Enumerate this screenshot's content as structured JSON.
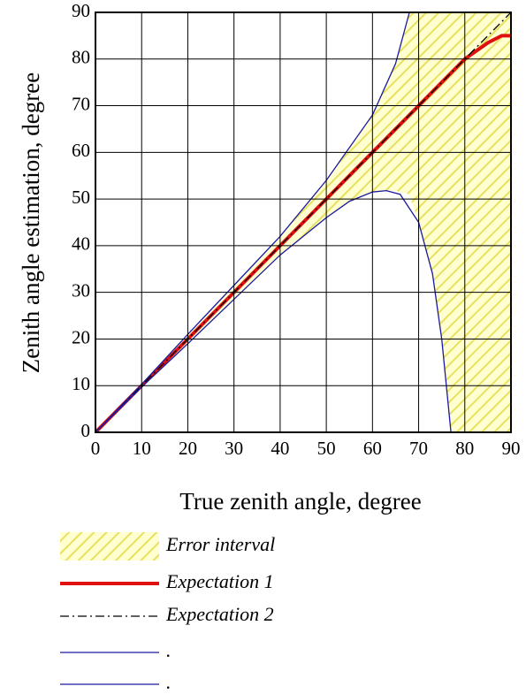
{
  "chart_data": {
    "type": "line",
    "x_label": "True zenith angle, degree",
    "y_label": "Zenith angle estimation, degree",
    "xlim": [
      0,
      90
    ],
    "ylim": [
      0,
      90
    ],
    "xticks": [
      0,
      10,
      20,
      30,
      40,
      50,
      60,
      70,
      80,
      90
    ],
    "yticks": [
      0,
      10,
      20,
      30,
      40,
      50,
      60,
      70,
      80,
      90
    ],
    "grid": true,
    "series": [
      {
        "name": "Error interval",
        "color": "#e8e060",
        "style": "hatch",
        "x": [
          0,
          10,
          20,
          30,
          40,
          50,
          55,
          60,
          65,
          68,
          70,
          73,
          75,
          77,
          80,
          85,
          90
        ],
        "values": [
          0,
          10.3,
          21,
          31.5,
          42,
          54,
          61,
          68,
          79,
          90,
          90,
          90,
          90,
          90,
          90,
          90,
          90
        ],
        "lower": [
          0,
          9.7,
          19,
          28.5,
          38,
          46,
          49.5,
          51.5,
          51.8,
          51,
          45,
          34,
          20,
          0,
          0,
          0,
          0
        ]
      },
      {
        "name": "Expectation 1",
        "color": "#e01010",
        "style": "solid",
        "x": [
          0,
          10,
          20,
          30,
          40,
          50,
          60,
          70,
          80,
          85,
          88,
          90
        ],
        "values": [
          0,
          10,
          20,
          30,
          40,
          50,
          60,
          70,
          80,
          83.5,
          85,
          85
        ]
      },
      {
        "name": "Expectation 2",
        "color": "#000000",
        "style": "dashdot",
        "x": [
          0,
          10,
          20,
          30,
          40,
          50,
          60,
          70,
          80,
          90
        ],
        "values": [
          0,
          10,
          20,
          30,
          40,
          50,
          60,
          70,
          80,
          90
        ]
      },
      {
        "name": ".",
        "color": "#1a1aa0",
        "style": "thin",
        "x": [
          0,
          10,
          20,
          30,
          40,
          50,
          55,
          60,
          65,
          68
        ],
        "values": [
          0,
          10.3,
          21,
          31.5,
          42,
          54,
          61,
          68,
          79,
          90
        ]
      },
      {
        "name": ".",
        "color": "#1a1aa0",
        "style": "thin",
        "x": [
          0,
          10,
          20,
          30,
          40,
          50,
          55,
          60,
          63,
          66,
          70,
          73,
          75,
          77
        ],
        "values": [
          0,
          9.7,
          19,
          28.5,
          38,
          46,
          49.5,
          51.5,
          51.8,
          51,
          45,
          34,
          20,
          0
        ]
      }
    ]
  }
}
